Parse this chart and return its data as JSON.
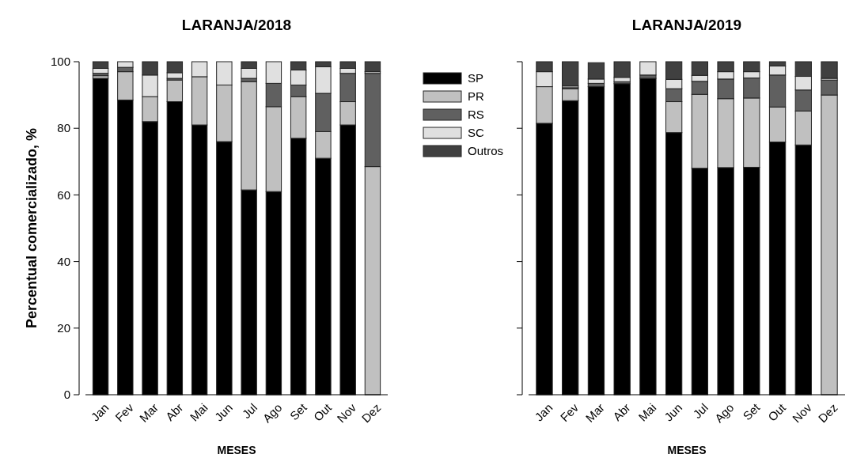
{
  "chart_data": [
    {
      "type": "bar",
      "title": "LARANJA/2018",
      "xlabel": "MESES",
      "ylabel": "Percentual comercializado, %",
      "stacked": true,
      "legend": "right",
      "categories": [
        "Jan",
        "Fev",
        "Mar",
        "Abr",
        "Mai",
        "Jun",
        "Jul",
        "Ago",
        "Set",
        "Out",
        "Nov",
        "Dez"
      ],
      "ylim": [
        0,
        100
      ],
      "yticks": [
        0,
        20,
        40,
        60,
        80,
        100
      ],
      "series": [
        {
          "name": "SP",
          "color": "#000000",
          "values": [
            95,
            88.5,
            82,
            88,
            81,
            76,
            61.5,
            61,
            77,
            71,
            81,
            0
          ]
        },
        {
          "name": "PR",
          "color": "#c0c0c0",
          "values": [
            0.8,
            8.5,
            7.5,
            6.5,
            14.5,
            17,
            32.5,
            25.5,
            12.5,
            8,
            7,
            68.5
          ]
        },
        {
          "name": "RS",
          "color": "#606060",
          "values": [
            0.7,
            1.3,
            0,
            0.5,
            0,
            0,
            1,
            7,
            3.5,
            11.5,
            8.5,
            28
          ]
        },
        {
          "name": "SC",
          "color": "#e0e0e0",
          "values": [
            1.5,
            1.7,
            6.5,
            1.7,
            4.5,
            7,
            3,
            6.5,
            4.5,
            8,
            1.5,
            0.5
          ]
        },
        {
          "name": "Outros",
          "color": "#404040",
          "values": [
            2,
            0,
            4,
            3.3,
            0,
            0,
            2,
            0,
            2.5,
            1.5,
            2,
            3
          ]
        }
      ]
    },
    {
      "type": "bar",
      "title": "LARANJA/2019",
      "xlabel": "MESES",
      "stacked": true,
      "tick_labels": "x",
      "categories": [
        "Jan",
        "Fev",
        "Mar",
        "Abr",
        "Mai",
        "Jun",
        "Jul",
        "Ago",
        "Set",
        "Out",
        "Nov",
        "Dez"
      ],
      "ylim": [
        0,
        100
      ],
      "yticks": [
        0,
        20,
        40,
        60,
        80,
        100
      ],
      "series": [
        {
          "color": "#000000",
          "values": [
            81.5,
            88.3,
            92.5,
            93.4,
            95,
            78.7,
            68,
            68.2,
            68.3,
            75.9,
            75,
            0
          ]
        },
        {
          "color": "#c0c0c0",
          "values": [
            11,
            3.6,
            0,
            0,
            0,
            9.3,
            22.2,
            20.7,
            20.8,
            10.5,
            10.2,
            90
          ]
        },
        {
          "color": "#606060",
          "values": [
            0,
            0.3,
            1,
            0.6,
            1,
            3.9,
            3.9,
            5.9,
            6,
            9.6,
            6.3,
            4.5
          ]
        },
        {
          "color": "#e0e0e0",
          "values": [
            4.5,
            0.5,
            1.3,
            1.3,
            4,
            2.8,
            1.8,
            2.2,
            1.9,
            2.7,
            4.1,
            0.5
          ]
        },
        {
          "color": "#404040",
          "values": [
            3,
            7.3,
            4.9,
            4.7,
            0,
            5.3,
            4.1,
            3,
            3,
            1.3,
            4.4,
            5
          ]
        }
      ]
    }
  ]
}
